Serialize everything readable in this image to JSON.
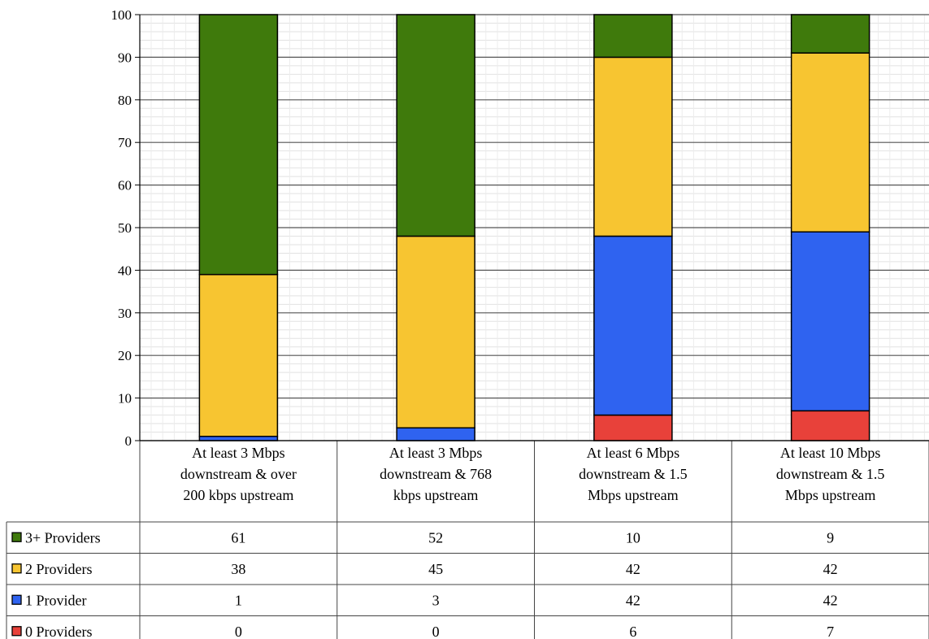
{
  "chart_data": {
    "type": "bar",
    "stacked": true,
    "categories": [
      "At least 3 Mbps downstream & over 200 kbps upstream",
      "At least 3 Mbps downstream & 768 kbps upstream",
      "At least 6 Mbps downstream & 1.5 Mbps upstream",
      "At least 10 Mbps downstream & 1.5 Mbps upstream"
    ],
    "category_lines": [
      [
        "At least 3 Mbps",
        "downstream & over",
        "200 kbps upstream"
      ],
      [
        "At least 3 Mbps",
        "downstream & 768",
        "kbps upstream"
      ],
      [
        "At least 6 Mbps",
        "downstream & 1.5",
        "Mbps upstream"
      ],
      [
        "At least 10 Mbps",
        "downstream & 1.5",
        "Mbps upstream"
      ]
    ],
    "series": [
      {
        "name": "0 Providers",
        "color": "#e8413a",
        "values": [
          0,
          0,
          6,
          7
        ]
      },
      {
        "name": "1 Provider",
        "color": "#2f63f0",
        "values": [
          1,
          3,
          42,
          42
        ]
      },
      {
        "name": "2 Providers",
        "color": "#f7c531",
        "values": [
          38,
          45,
          42,
          42
        ]
      },
      {
        "name": "3+ Providers",
        "color": "#3f7a0c",
        "values": [
          61,
          52,
          10,
          9
        ]
      }
    ],
    "table_order": [
      "3+ Providers",
      "2 Providers",
      "1 Provider",
      "0 Providers"
    ],
    "ylim": [
      0,
      100
    ],
    "yticks": [
      0,
      10,
      20,
      30,
      40,
      50,
      60,
      70,
      80,
      90,
      100
    ],
    "grid": true,
    "legend": "data-table-left"
  }
}
